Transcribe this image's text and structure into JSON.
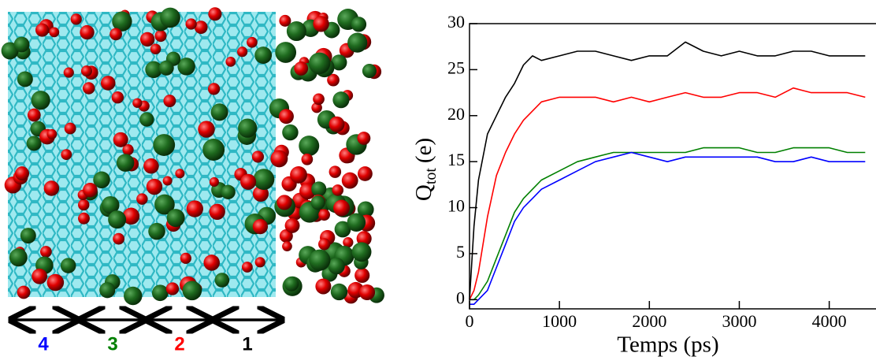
{
  "chart_data": {
    "type": "line",
    "xlabel": "Temps (ps)",
    "ylabel": {
      "main": "Q",
      "sub": "tot",
      "unit": "(e)"
    },
    "x": [
      0,
      50,
      100,
      200,
      300,
      400,
      500,
      600,
      700,
      800,
      1000,
      1200,
      1400,
      1600,
      1800,
      2000,
      2200,
      2400,
      2600,
      2800,
      3000,
      3200,
      3400,
      3600,
      3800,
      4000,
      4200,
      4400
    ],
    "series": [
      {
        "color": "#000000",
        "values": [
          0,
          8,
          13,
          18,
          20,
          22,
          23.5,
          25.5,
          26.5,
          26,
          26.5,
          27,
          27,
          26.5,
          26,
          26.5,
          26.5,
          28,
          27,
          26.5,
          27,
          26.5,
          26.5,
          27,
          27,
          26.5,
          26.5,
          26.5
        ]
      },
      {
        "color": "#ff0000",
        "values": [
          0,
          1,
          3,
          9,
          13.5,
          16,
          18,
          19.5,
          20.5,
          21.5,
          22,
          22,
          22,
          21.5,
          22,
          21.5,
          22,
          22.5,
          22,
          22,
          22.5,
          22.5,
          22,
          23,
          22.5,
          22.5,
          22.5,
          22
        ]
      },
      {
        "color": "#008000",
        "values": [
          0,
          0,
          0.5,
          2,
          4.5,
          7,
          9.5,
          11,
          12,
          13,
          14,
          15,
          15.5,
          16,
          16,
          16,
          16,
          16,
          16.5,
          16.5,
          16.5,
          16,
          16,
          16.5,
          16.5,
          16.5,
          16,
          16
        ]
      },
      {
        "color": "#0000ff",
        "values": [
          -0.5,
          -0.5,
          0,
          1,
          3.5,
          6,
          8.5,
          10,
          11,
          12,
          13,
          14,
          15,
          15.5,
          16,
          15.5,
          15,
          15.5,
          15.5,
          15.5,
          15.5,
          15.5,
          15,
          15,
          15.5,
          15,
          15,
          15
        ]
      }
    ],
    "xlim": [
      0,
      4520
    ],
    "xticks": [
      0,
      1000,
      2000,
      3000,
      4000
    ],
    "ylim": [
      -1,
      30
    ],
    "yticks": [
      0,
      5,
      10,
      15,
      20,
      25,
      30
    ]
  },
  "left_panel": {
    "region_labels": [
      "4",
      "3",
      "2",
      "1"
    ]
  }
}
